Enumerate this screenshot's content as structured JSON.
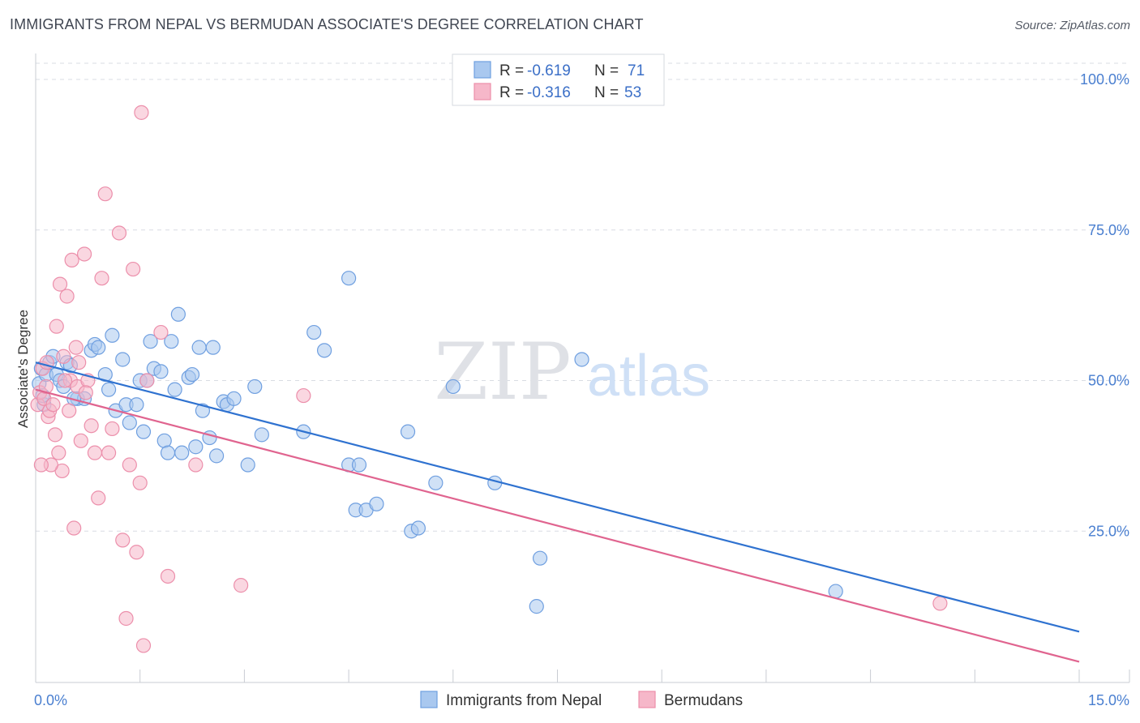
{
  "title": "IMMIGRANTS FROM NEPAL VS BERMUDAN ASSOCIATE'S DEGREE CORRELATION CHART",
  "source": "Source: ZipAtlas.com",
  "watermark": {
    "zip": "ZIP",
    "atlas": "atlas"
  },
  "colors": {
    "blue_fill": "#a9c8ef",
    "blue_stroke": "#6f9fe0",
    "blue_line": "#2f72d0",
    "pink_fill": "#f6b7c9",
    "pink_stroke": "#ec8fab",
    "pink_line": "#e0648f",
    "tick_color": "#4a7fd0",
    "grid": "#d9dce3"
  },
  "legend": [
    {
      "r_label": "R =",
      "r_value": "-0.619",
      "n_label": "N =",
      "n_value": "71"
    },
    {
      "r_label": "R =",
      "r_value": "-0.316",
      "n_label": "N =",
      "n_value": "53"
    }
  ],
  "chart_data": {
    "type": "scatter",
    "title": "IMMIGRANTS FROM NEPAL VS BERMUDAN ASSOCIATE'S DEGREE CORRELATION CHART",
    "xlabel": "",
    "ylabel": "Associate's Degree",
    "xlim": [
      0,
      15
    ],
    "ylim": [
      0,
      102
    ],
    "x_tick_labels": [
      "0.0%",
      "15.0%"
    ],
    "y_ticks": [
      25,
      50,
      75,
      100
    ],
    "y_tick_labels": [
      "25.0%",
      "50.0%",
      "75.0%",
      "100.0%"
    ],
    "grid": true,
    "series": [
      {
        "name": "Immigrants from Nepal",
        "color": "blue",
        "trend": {
          "x": [
            0,
            15
          ],
          "y": [
            53.0,
            8.3
          ]
        },
        "points": [
          [
            0.05,
            49.5
          ],
          [
            0.08,
            52
          ],
          [
            0.12,
            46
          ],
          [
            0.15,
            51
          ],
          [
            0.2,
            53
          ],
          [
            0.25,
            54
          ],
          [
            0.3,
            51
          ],
          [
            0.35,
            50
          ],
          [
            0.4,
            49
          ],
          [
            0.45,
            53
          ],
          [
            0.5,
            52.5
          ],
          [
            0.6,
            47
          ],
          [
            0.7,
            47
          ],
          [
            0.8,
            55
          ],
          [
            0.85,
            56
          ],
          [
            0.9,
            55.5
          ],
          [
            1.0,
            51
          ],
          [
            1.05,
            48.5
          ],
          [
            1.1,
            57.5
          ],
          [
            1.15,
            45
          ],
          [
            1.3,
            46
          ],
          [
            1.25,
            53.5
          ],
          [
            1.35,
            43
          ],
          [
            1.5,
            50
          ],
          [
            1.55,
            41.5
          ],
          [
            1.6,
            50
          ],
          [
            1.65,
            56.5
          ],
          [
            1.7,
            52
          ],
          [
            1.8,
            51.5
          ],
          [
            1.85,
            40
          ],
          [
            1.9,
            38
          ],
          [
            1.95,
            56.5
          ],
          [
            2.0,
            48.5
          ],
          [
            2.05,
            61
          ],
          [
            2.1,
            38
          ],
          [
            2.2,
            50.5
          ],
          [
            2.25,
            51
          ],
          [
            2.3,
            39
          ],
          [
            2.35,
            55.5
          ],
          [
            2.4,
            45
          ],
          [
            2.5,
            40.5
          ],
          [
            2.55,
            55.5
          ],
          [
            2.6,
            37.5
          ],
          [
            2.7,
            46.5
          ],
          [
            2.75,
            46
          ],
          [
            2.85,
            47
          ],
          [
            3.05,
            36
          ],
          [
            3.15,
            49
          ],
          [
            3.25,
            41
          ],
          [
            3.85,
            41.5
          ],
          [
            4.0,
            58
          ],
          [
            4.15,
            55
          ],
          [
            4.5,
            67
          ],
          [
            4.5,
            36
          ],
          [
            4.6,
            28.5
          ],
          [
            4.65,
            36
          ],
          [
            4.75,
            28.5
          ],
          [
            4.9,
            29.5
          ],
          [
            5.35,
            41.5
          ],
          [
            5.4,
            25
          ],
          [
            5.5,
            25.5
          ],
          [
            5.75,
            33
          ],
          [
            6.0,
            49
          ],
          [
            6.6,
            33
          ],
          [
            7.2,
            12.5
          ],
          [
            7.25,
            20.5
          ],
          [
            7.85,
            53.5
          ],
          [
            11.5,
            15
          ],
          [
            0.1,
            47.5
          ],
          [
            0.55,
            47
          ],
          [
            1.45,
            46
          ]
        ]
      },
      {
        "name": "Bermudans",
        "color": "pink",
        "trend": {
          "x": [
            0,
            15
          ],
          "y": [
            48.5,
            3.3
          ]
        },
        "points": [
          [
            0.03,
            46
          ],
          [
            0.06,
            48
          ],
          [
            0.1,
            52
          ],
          [
            0.12,
            47
          ],
          [
            0.15,
            49
          ],
          [
            0.18,
            44
          ],
          [
            0.2,
            45
          ],
          [
            0.25,
            46
          ],
          [
            0.28,
            41
          ],
          [
            0.3,
            59
          ],
          [
            0.35,
            66
          ],
          [
            0.38,
            35
          ],
          [
            0.4,
            54
          ],
          [
            0.45,
            64
          ],
          [
            0.5,
            50
          ],
          [
            0.52,
            70
          ],
          [
            0.55,
            25.5
          ],
          [
            0.6,
            49
          ],
          [
            0.62,
            53
          ],
          [
            0.65,
            40
          ],
          [
            0.7,
            71
          ],
          [
            0.75,
            50
          ],
          [
            0.8,
            42.5
          ],
          [
            0.85,
            38
          ],
          [
            0.9,
            30.5
          ],
          [
            0.95,
            67
          ],
          [
            1.0,
            81
          ],
          [
            1.05,
            38
          ],
          [
            1.1,
            42
          ],
          [
            1.2,
            74.5
          ],
          [
            1.25,
            23.5
          ],
          [
            1.3,
            10.5
          ],
          [
            1.35,
            36
          ],
          [
            1.4,
            68.5
          ],
          [
            1.45,
            21.5
          ],
          [
            1.5,
            33
          ],
          [
            1.55,
            6
          ],
          [
            1.8,
            58
          ],
          [
            1.9,
            17.5
          ],
          [
            1.52,
            94.5
          ],
          [
            2.3,
            36
          ],
          [
            2.95,
            16
          ],
          [
            3.85,
            47.5
          ],
          [
            0.22,
            36
          ],
          [
            0.33,
            38
          ],
          [
            0.42,
            50
          ],
          [
            0.48,
            45
          ],
          [
            0.58,
            55.5
          ],
          [
            0.72,
            48
          ],
          [
            0.08,
            36
          ],
          [
            0.16,
            53
          ],
          [
            1.6,
            50
          ],
          [
            13.0,
            13
          ]
        ]
      }
    ]
  },
  "bottom_legend": [
    "Immigrants from Nepal",
    "Bermudans"
  ]
}
